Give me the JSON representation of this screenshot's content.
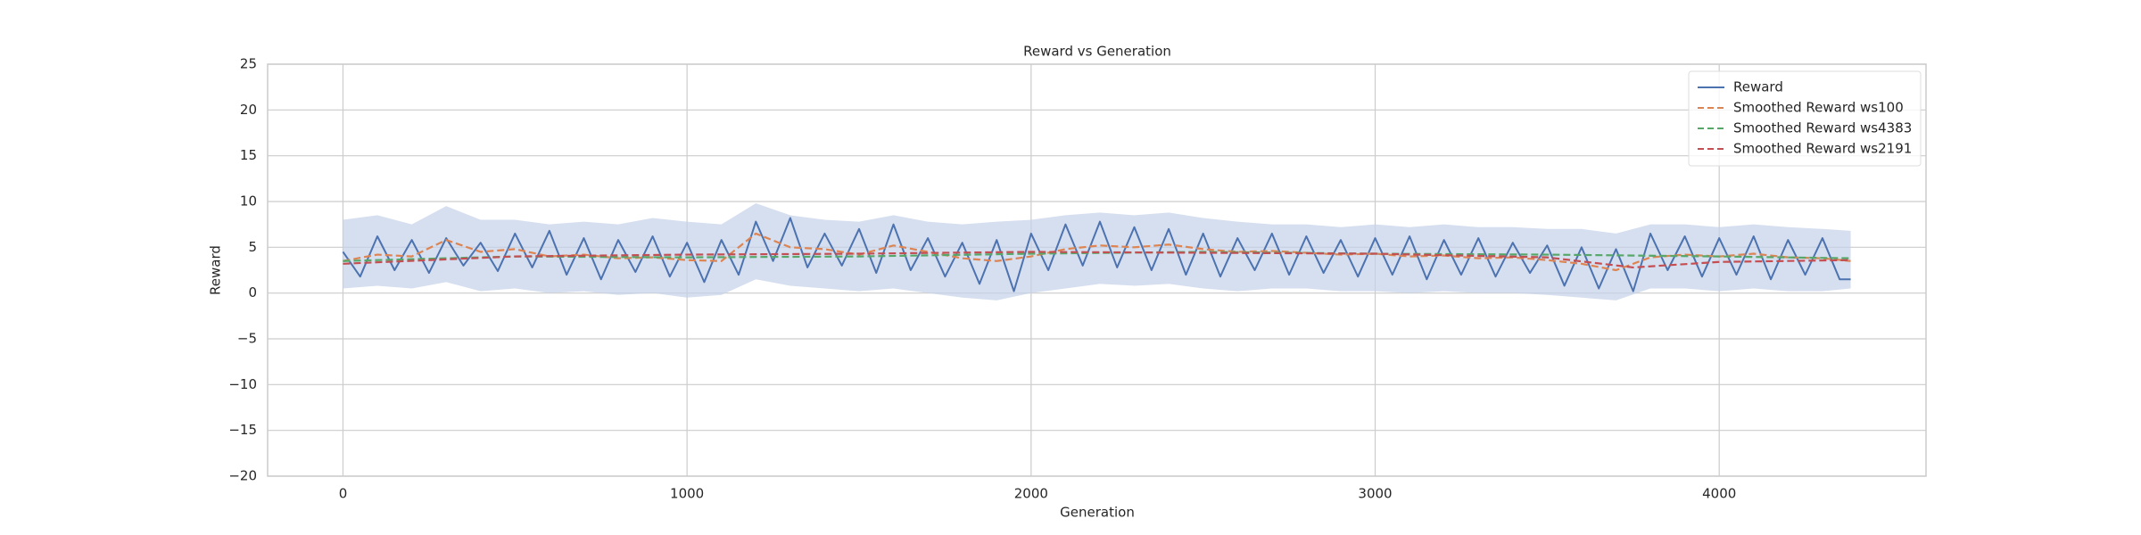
{
  "chart_data": {
    "type": "line",
    "title": "Reward vs Generation",
    "xlabel": "Generation",
    "ylabel": "Reward",
    "xlim": [
      -219,
      4601
    ],
    "ylim": [
      -20,
      25
    ],
    "xticks": [
      0,
      1000,
      2000,
      3000,
      4000
    ],
    "yticks": [
      {
        "value": -20,
        "label": "−20"
      },
      {
        "value": -15,
        "label": "−15"
      },
      {
        "value": -10,
        "label": "−10"
      },
      {
        "value": -5,
        "label": "−5"
      },
      0,
      5,
      10,
      15,
      20,
      25
    ],
    "grid": true,
    "legend": "upper right",
    "band": {
      "color": "#c5d2e8",
      "x": [
        0,
        100,
        200,
        300,
        400,
        500,
        600,
        700,
        800,
        900,
        1000,
        1100,
        1200,
        1300,
        1400,
        1500,
        1600,
        1700,
        1800,
        1900,
        2000,
        2100,
        2200,
        2300,
        2400,
        2500,
        2600,
        2700,
        2800,
        2900,
        3000,
        3100,
        3200,
        3300,
        3400,
        3500,
        3600,
        3700,
        3800,
        3900,
        4000,
        4100,
        4200,
        4300,
        4382
      ],
      "lower": [
        0.5,
        0.8,
        0.5,
        1.2,
        0.2,
        0.5,
        0.0,
        0.2,
        -0.2,
        0.0,
        -0.5,
        -0.2,
        1.5,
        0.8,
        0.5,
        0.2,
        0.5,
        0.0,
        -0.5,
        -0.8,
        0.0,
        0.5,
        1.0,
        0.8,
        1.0,
        0.5,
        0.2,
        0.5,
        0.5,
        0.2,
        0.2,
        0.0,
        0.2,
        0.0,
        0.0,
        -0.2,
        -0.5,
        -0.8,
        0.5,
        0.5,
        0.2,
        0.5,
        0.2,
        0.2,
        0.5
      ],
      "upper": [
        8.0,
        8.5,
        7.5,
        9.5,
        8.0,
        8.0,
        7.5,
        7.8,
        7.5,
        8.2,
        7.8,
        7.5,
        9.8,
        8.5,
        8.0,
        7.8,
        8.5,
        7.8,
        7.5,
        7.8,
        8.0,
        8.5,
        8.8,
        8.5,
        8.8,
        8.2,
        7.8,
        7.5,
        7.5,
        7.2,
        7.5,
        7.2,
        7.5,
        7.2,
        7.2,
        7.0,
        7.0,
        6.5,
        7.5,
        7.5,
        7.2,
        7.5,
        7.2,
        7.0,
        6.8
      ]
    },
    "series": [
      {
        "name": "Reward",
        "color": "#4c72b0",
        "linestyle": "solid",
        "x": [
          0,
          50,
          100,
          150,
          200,
          250,
          300,
          350,
          400,
          450,
          500,
          550,
          600,
          650,
          700,
          750,
          800,
          850,
          900,
          950,
          1000,
          1050,
          1100,
          1150,
          1200,
          1250,
          1300,
          1350,
          1400,
          1450,
          1500,
          1550,
          1600,
          1650,
          1700,
          1750,
          1800,
          1850,
          1900,
          1950,
          2000,
          2050,
          2100,
          2150,
          2200,
          2250,
          2300,
          2350,
          2400,
          2450,
          2500,
          2550,
          2600,
          2650,
          2700,
          2750,
          2800,
          2850,
          2900,
          2950,
          3000,
          3050,
          3100,
          3150,
          3200,
          3250,
          3300,
          3350,
          3400,
          3450,
          3500,
          3550,
          3600,
          3650,
          3700,
          3750,
          3800,
          3850,
          3900,
          3950,
          4000,
          4050,
          4100,
          4150,
          4200,
          4250,
          4300,
          4350,
          4382
        ],
        "values": [
          4.5,
          1.8,
          6.2,
          2.5,
          5.8,
          2.2,
          6.0,
          3.0,
          5.5,
          2.4,
          6.5,
          2.8,
          6.8,
          2.0,
          6.0,
          1.5,
          5.8,
          2.3,
          6.2,
          1.8,
          5.5,
          1.2,
          5.8,
          2.0,
          7.8,
          3.5,
          8.2,
          2.8,
          6.5,
          3.0,
          7.0,
          2.2,
          7.5,
          2.5,
          6.0,
          1.8,
          5.5,
          1.0,
          5.8,
          0.2,
          6.5,
          2.5,
          7.5,
          3.0,
          7.8,
          2.8,
          7.2,
          2.5,
          7.0,
          2.0,
          6.5,
          1.8,
          6.0,
          2.5,
          6.5,
          2.0,
          6.2,
          2.2,
          5.8,
          1.8,
          6.0,
          2.0,
          6.2,
          1.5,
          5.8,
          2.0,
          6.0,
          1.8,
          5.5,
          2.2,
          5.2,
          0.8,
          5.0,
          0.5,
          4.8,
          0.2,
          6.5,
          2.5,
          6.2,
          1.8,
          6.0,
          2.0,
          6.2,
          1.5,
          5.8,
          2.0,
          6.0,
          1.5,
          1.5
        ]
      },
      {
        "name": "Smoothed Reward ws100",
        "color": "#dd8452",
        "linestyle": "dashed",
        "x": [
          0,
          100,
          200,
          300,
          400,
          500,
          600,
          700,
          800,
          900,
          1000,
          1100,
          1200,
          1300,
          1400,
          1500,
          1600,
          1700,
          1800,
          1900,
          2000,
          2100,
          2200,
          2300,
          2400,
          2500,
          2600,
          2700,
          2800,
          2900,
          3000,
          3100,
          3200,
          3300,
          3400,
          3500,
          3600,
          3700,
          3800,
          3900,
          4000,
          4100,
          4200,
          4300,
          4382
        ],
        "values": [
          3.5,
          4.2,
          4.0,
          5.8,
          4.5,
          4.8,
          4.0,
          4.2,
          3.8,
          3.9,
          3.6,
          3.5,
          6.5,
          5.0,
          4.8,
          4.2,
          5.2,
          4.5,
          3.8,
          3.5,
          4.0,
          4.8,
          5.2,
          5.0,
          5.3,
          4.8,
          4.5,
          4.6,
          4.4,
          4.2,
          4.3,
          4.0,
          4.1,
          3.8,
          3.9,
          3.6,
          3.2,
          2.5,
          3.9,
          4.2,
          4.0,
          4.3,
          3.9,
          3.8,
          3.5
        ]
      },
      {
        "name": "Smoothed Reward ws4383",
        "color": "#55a868",
        "linestyle": "dashed",
        "x": [
          0,
          500,
          1000,
          1500,
          2000,
          2500,
          3000,
          3500,
          4000,
          4382
        ],
        "values": [
          3.5,
          4.0,
          3.9,
          4.0,
          4.3,
          4.5,
          4.3,
          4.2,
          4.0,
          3.8
        ]
      },
      {
        "name": "Smoothed Reward ws2191",
        "color": "#c44e52",
        "linestyle": "dashed",
        "x": [
          0,
          500,
          1000,
          1500,
          2000,
          2500,
          3000,
          3500,
          3750,
          4000,
          4382
        ],
        "values": [
          3.2,
          4.0,
          4.2,
          4.3,
          4.5,
          4.4,
          4.3,
          3.9,
          2.8,
          3.4,
          3.6
        ]
      }
    ]
  }
}
